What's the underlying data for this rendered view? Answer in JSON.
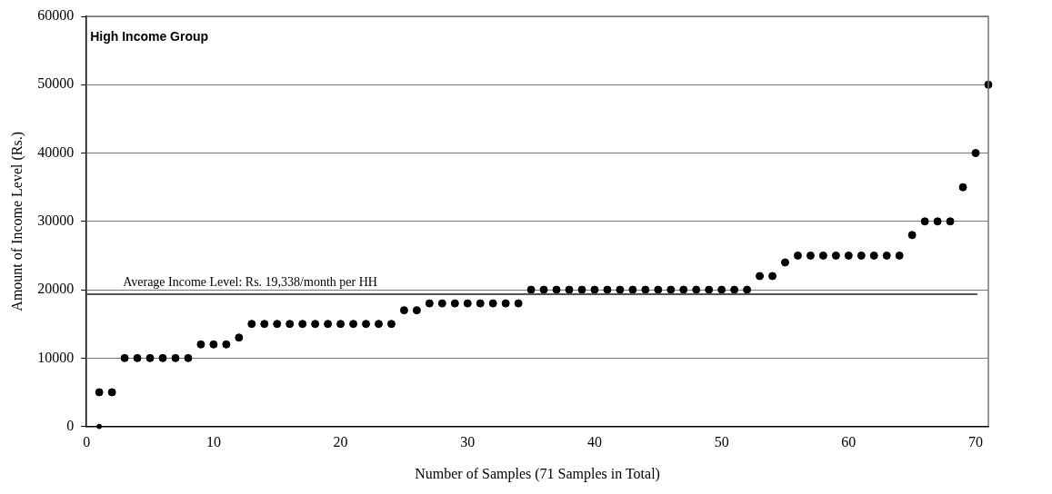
{
  "chart_data": {
    "type": "scatter",
    "title": "High Income Group",
    "xlabel": "Number of Samples (71 Samples in Total)",
    "ylabel": "Amount of Income Level (Rs.)",
    "series": [
      {
        "color": "#000000",
        "x": [
          1,
          2,
          3,
          4,
          5,
          6,
          7,
          8,
          9,
          10,
          11,
          12,
          13,
          14,
          15,
          16,
          17,
          18,
          19,
          20,
          21,
          22,
          23,
          24,
          25,
          26,
          27,
          28,
          29,
          30,
          31,
          32,
          33,
          34,
          35,
          36,
          37,
          38,
          39,
          40,
          41,
          42,
          43,
          44,
          45,
          46,
          47,
          48,
          49,
          50,
          51,
          52,
          53,
          54,
          55,
          56,
          57,
          58,
          59,
          60,
          61,
          62,
          63,
          64,
          65,
          66,
          67,
          68,
          69,
          70,
          71
        ],
        "values": [
          5000,
          5000,
          10000,
          10000,
          10000,
          10000,
          10000,
          10000,
          12000,
          12000,
          12000,
          13000,
          15000,
          15000,
          15000,
          15000,
          15000,
          15000,
          15000,
          15000,
          15000,
          15000,
          15000,
          15000,
          17000,
          17000,
          18000,
          18000,
          18000,
          18000,
          18000,
          18000,
          18000,
          18000,
          20000,
          20000,
          20000,
          20000,
          20000,
          20000,
          20000,
          20000,
          20000,
          20000,
          20000,
          20000,
          20000,
          20000,
          20000,
          20000,
          20000,
          20000,
          22000,
          22000,
          24000,
          25000,
          25000,
          25000,
          25000,
          25000,
          25000,
          25000,
          25000,
          25000,
          28000,
          30000,
          30000,
          30000,
          35000,
          40000,
          50000
        ]
      },
      {
        "color": "#000000",
        "x": [
          1
        ],
        "values": [
          0
        ]
      }
    ],
    "xlim": [
      0,
      71
    ],
    "xticks": [
      0,
      10,
      20,
      30,
      40,
      50,
      60,
      70
    ],
    "ylim": [
      0,
      60000
    ],
    "yticks": [
      0,
      10000,
      20000,
      30000,
      40000,
      50000,
      60000
    ],
    "ref_lines": [
      {
        "axis": "y",
        "value": 19338,
        "label": "Average Income Level: Rs. 19,338/month per HH",
        "color": "#555555"
      }
    ],
    "grid": "y",
    "legend": false,
    "marker": "circle"
  }
}
